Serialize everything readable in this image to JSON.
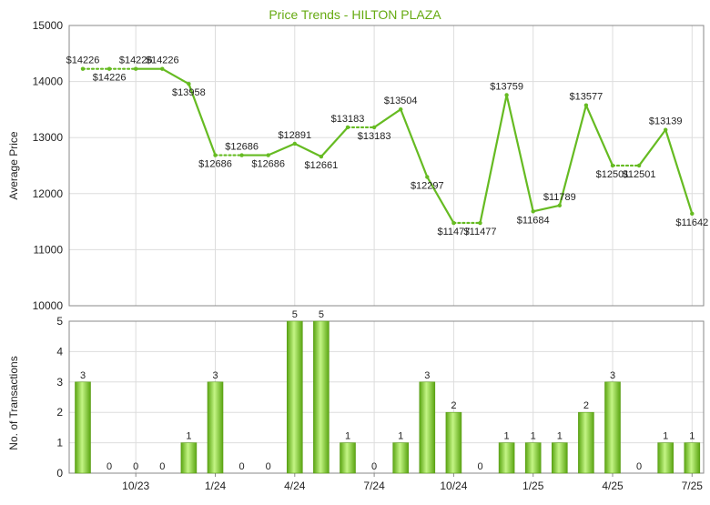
{
  "colors": {
    "title": "#66aa11",
    "line": "#66bb22",
    "bar_light": "#bdf07a",
    "bar_dark": "#5aa512",
    "grid": "#dddddd",
    "axis": "#888888",
    "text": "#222222"
  },
  "chart_data": [
    {
      "type": "line",
      "title": "Price Trends - HILTON PLAZA",
      "ylabel": "Average Price",
      "ylim": [
        10000,
        15000
      ],
      "yticks": [
        "10000",
        "11000",
        "12000",
        "13000",
        "14000",
        "15000"
      ],
      "grid": true,
      "x_index": [
        0,
        1,
        2,
        3,
        4,
        5,
        6,
        7,
        8,
        9,
        10,
        11,
        12,
        13,
        14,
        15,
        16,
        17,
        18,
        19,
        20,
        21,
        22,
        23
      ],
      "values": [
        14226,
        14226,
        14226,
        14226,
        13958,
        12686,
        12686,
        12686,
        12891,
        12661,
        13183,
        13183,
        13504,
        12297,
        11477,
        11477,
        13759,
        11684,
        11789,
        13577,
        12501,
        12501,
        13139,
        11642
      ],
      "labels": [
        "$14226",
        "$14226",
        "$14226",
        "$14226",
        "$13958",
        "$12686",
        "$12686",
        "$12686",
        "$12891",
        "$12661",
        "$13183",
        "$13183",
        "$13504",
        "$12297",
        "$11477",
        "$11477",
        "$13759",
        "$11684",
        "$11789",
        "$13577",
        "$12501",
        "$12501",
        "$13139",
        "$11642"
      ],
      "interpolated": [
        false,
        true,
        true,
        false,
        false,
        false,
        true,
        false,
        false,
        false,
        false,
        true,
        false,
        false,
        false,
        true,
        false,
        false,
        false,
        false,
        false,
        true,
        false,
        false
      ]
    },
    {
      "type": "bar",
      "ylabel": "No. of Transactions",
      "ylim": [
        0,
        5
      ],
      "yticks": [
        "0",
        "1",
        "2",
        "3",
        "4",
        "5"
      ],
      "grid": true,
      "x_index": [
        0,
        1,
        2,
        3,
        4,
        5,
        6,
        7,
        8,
        9,
        10,
        11,
        12,
        13,
        14,
        15,
        16,
        17,
        18,
        19,
        20,
        21,
        22,
        23
      ],
      "values": [
        3,
        0,
        0,
        0,
        1,
        3,
        0,
        0,
        5,
        5,
        1,
        0,
        1,
        3,
        2,
        0,
        1,
        1,
        1,
        2,
        3,
        0,
        1,
        1
      ],
      "xtick_labels": [
        {
          "label": "10/23",
          "index": 2
        },
        {
          "label": "1/24",
          "index": 5
        },
        {
          "label": "4/24",
          "index": 8
        },
        {
          "label": "7/24",
          "index": 11
        },
        {
          "label": "10/24",
          "index": 14
        },
        {
          "label": "1/25",
          "index": 17
        },
        {
          "label": "4/25",
          "index": 20
        },
        {
          "label": "7/25",
          "index": 23
        }
      ]
    }
  ]
}
